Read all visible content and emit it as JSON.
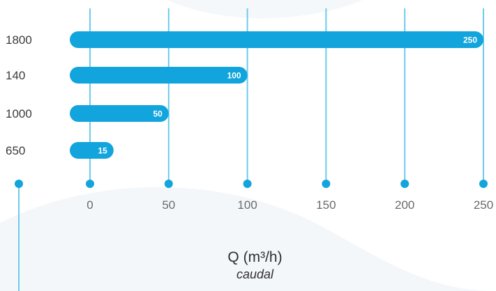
{
  "colors": {
    "accent": "#12a4dc",
    "gridline": "#6ccbeb",
    "background_shape": "#f2f6f9"
  },
  "axis": {
    "title": "Q (m³/h)",
    "subtitle": "caudal"
  },
  "chart_data": {
    "type": "bar",
    "orientation": "horizontal",
    "categories": [
      "1800",
      "140",
      "1000",
      "650"
    ],
    "values": [
      250,
      100,
      50,
      15
    ],
    "data_labels": [
      "250",
      "100",
      "50",
      "15"
    ],
    "xticks": [
      "0",
      "50",
      "100",
      "150",
      "200",
      "250"
    ],
    "xlim": [
      0,
      250
    ],
    "xlabel": "Q (m³/h)",
    "xlabel_sub": "caudal",
    "grid": "vertical",
    "legend": "none"
  }
}
